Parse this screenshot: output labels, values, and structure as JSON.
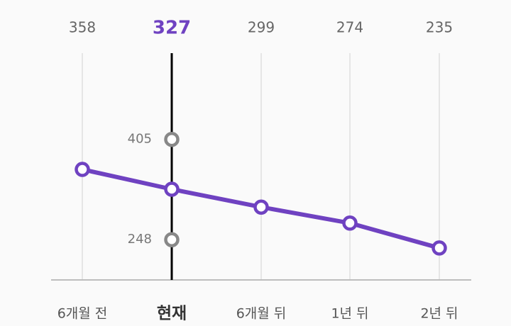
{
  "chart_data": {
    "type": "line",
    "categories": [
      "6개월 전",
      "현재",
      "6개월 뒤",
      "1년 뒤",
      "2년 뒤"
    ],
    "current_index": 1,
    "top_values": [
      "358",
      "327",
      "299",
      "274",
      "235"
    ],
    "series": [
      {
        "values": [
          358,
          327,
          299,
          274,
          235
        ]
      }
    ],
    "range_points": [
      {
        "category_index": 1,
        "value": 405,
        "label": "405"
      },
      {
        "category_index": 1,
        "value": 248,
        "label": "248"
      }
    ],
    "ylim": [
      185,
      540
    ],
    "grid": "vertical",
    "colors": {
      "line": "#6f42c1",
      "current_value": "#6f42c1",
      "current_marker_line": "#000000",
      "range_point": "#888888",
      "grid": "#e6e6e6",
      "baseline": "#bdbdbd"
    }
  }
}
